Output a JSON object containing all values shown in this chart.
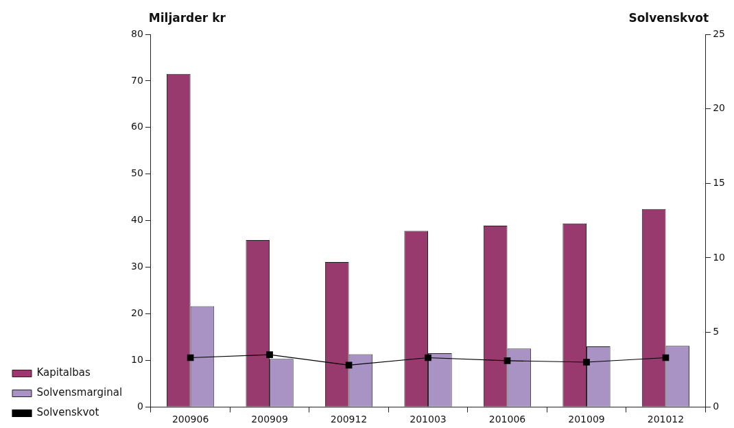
{
  "chart_data": {
    "type": "bar",
    "ylabel": "Miljarder kr",
    "y2label": "Solvenskvot",
    "categories": [
      "200906",
      "200909",
      "200912",
      "201003",
      "201006",
      "201009",
      "201012"
    ],
    "series": [
      {
        "name": "Kapitalbas",
        "color": "#983a6e",
        "values": [
          71.5,
          35.8,
          31.1,
          37.8,
          38.9,
          39.4,
          42.5
        ]
      },
      {
        "name": "Solvensmarginal",
        "color": "#a993c4",
        "values": [
          21.6,
          10.3,
          11.3,
          11.5,
          12.5,
          13.0,
          13.1
        ]
      },
      {
        "name": "Solvenskvot",
        "type": "line",
        "axis": "y2",
        "color": "#000000",
        "values": [
          3.3,
          3.5,
          2.8,
          3.3,
          3.1,
          3.0,
          3.3
        ]
      }
    ],
    "ylim": [
      0,
      80
    ],
    "yticks": [
      0,
      10,
      20,
      30,
      40,
      50,
      60,
      70,
      80
    ],
    "y2lim": [
      0,
      25
    ],
    "y2ticks": [
      0,
      5,
      10,
      15,
      20,
      25
    ],
    "marker": "square",
    "grid": false,
    "legend": "bottom left"
  }
}
